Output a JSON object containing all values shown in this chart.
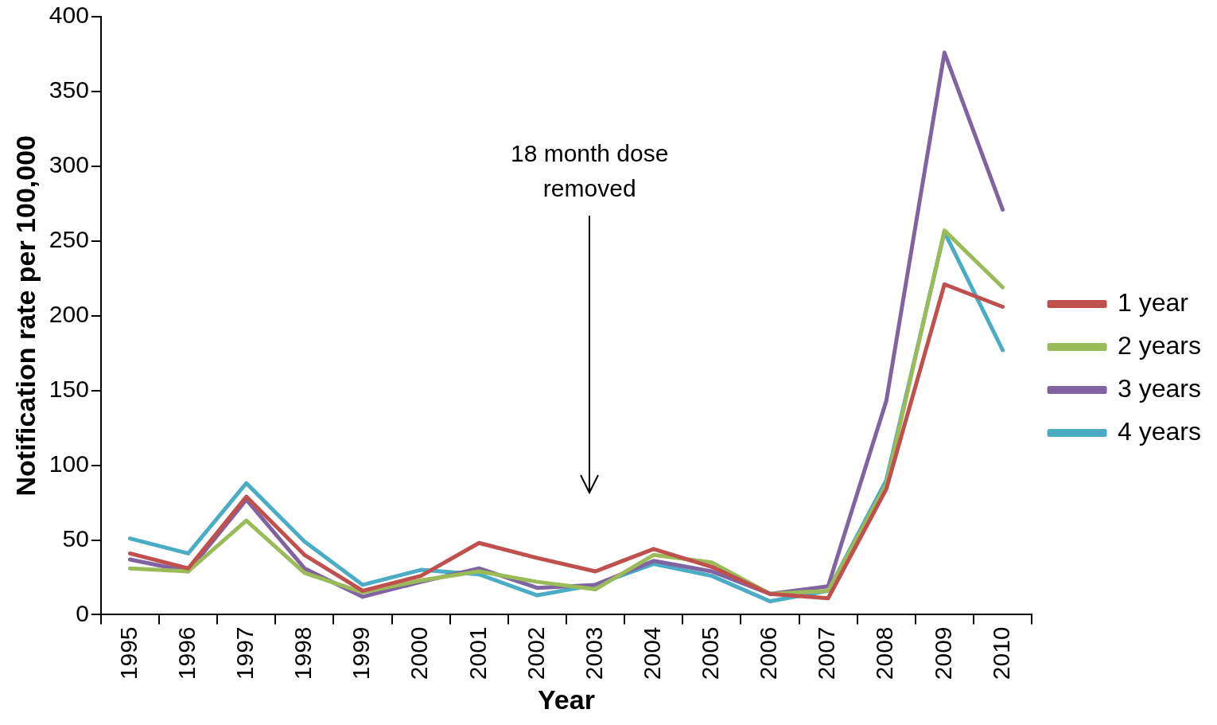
{
  "chart_data": {
    "type": "line",
    "xlabel": "Year",
    "ylabel": "Notification rate per 100,000",
    "categories": [
      "1995",
      "1996",
      "1997",
      "1998",
      "1999",
      "2000",
      "2001",
      "2002",
      "2003",
      "2004",
      "2005",
      "2006",
      "2007",
      "2008",
      "2009",
      "2010"
    ],
    "series": [
      {
        "name": "1 year",
        "color": "#c0504d",
        "values": [
          41,
          31,
          79,
          40,
          16,
          26,
          48,
          38,
          29,
          44,
          32,
          14,
          11,
          84,
          221,
          206
        ]
      },
      {
        "name": "2 years",
        "color": "#9bbb59",
        "values": [
          31,
          29,
          63,
          28,
          15,
          23,
          29,
          22,
          17,
          40,
          35,
          14,
          16,
          87,
          257,
          219
        ]
      },
      {
        "name": "3 years",
        "color": "#8064a2",
        "values": [
          37,
          29,
          77,
          31,
          12,
          22,
          31,
          18,
          20,
          36,
          29,
          14,
          19,
          143,
          376,
          271
        ]
      },
      {
        "name": "4 years",
        "color": "#4bacc6",
        "values": [
          51,
          41,
          88,
          49,
          20,
          30,
          27,
          13,
          20,
          34,
          26,
          9,
          16,
          90,
          256,
          177
        ]
      }
    ],
    "ylim": [
      0,
      400
    ],
    "yticks": [
      0,
      50,
      100,
      150,
      200,
      250,
      300,
      350,
      400
    ],
    "grid": false,
    "legend": "right",
    "marker": "none",
    "line_style": "solid",
    "annotations": [
      "18 month dose removed"
    ]
  }
}
